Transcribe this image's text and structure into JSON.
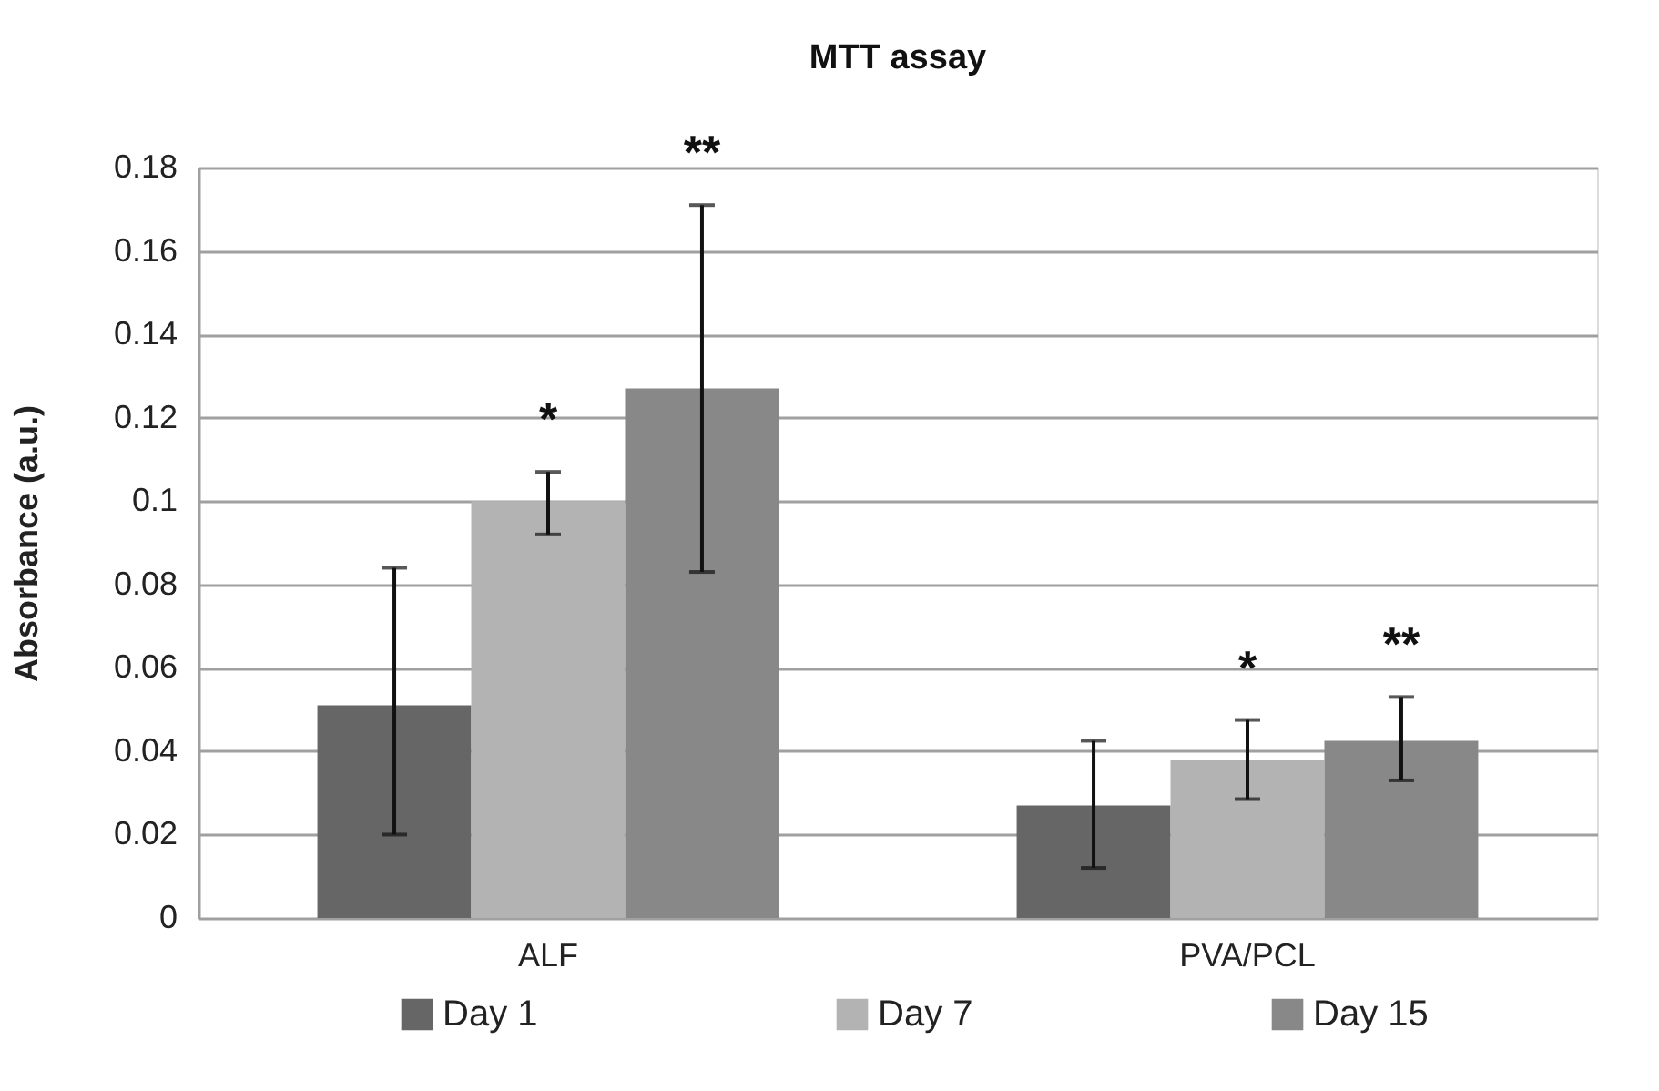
{
  "chart_data": {
    "type": "bar",
    "title": "MTT assay",
    "ylabel": "Absorbance  (a.u.)",
    "categories": [
      "ALF",
      "PVA/PCL"
    ],
    "series": [
      {
        "name": "Day 1",
        "color": "#666666",
        "values": [
          0.051,
          0.027
        ],
        "errors": [
          [
            0.02,
            0.084
          ],
          [
            0.012,
            0.0425
          ]
        ]
      },
      {
        "name": "Day 7",
        "color": "#b3b3b3",
        "values": [
          0.1,
          0.038
        ],
        "errors": [
          [
            0.092,
            0.107
          ],
          [
            0.0285,
            0.0475
          ]
        ]
      },
      {
        "name": "Day 15",
        "color": "#888888",
        "values": [
          0.127,
          0.0425
        ],
        "errors": [
          [
            0.083,
            0.171
          ],
          [
            0.033,
            0.053
          ]
        ]
      }
    ],
    "annotations": [
      "*",
      "**",
      "*",
      "**"
    ],
    "ylim": [
      0,
      0.18
    ],
    "yticks": [
      0,
      0.02,
      0.04,
      0.06,
      0.08,
      0.1,
      0.12,
      0.14,
      0.16,
      0.18
    ],
    "grid": "y",
    "legend": "bottom"
  }
}
